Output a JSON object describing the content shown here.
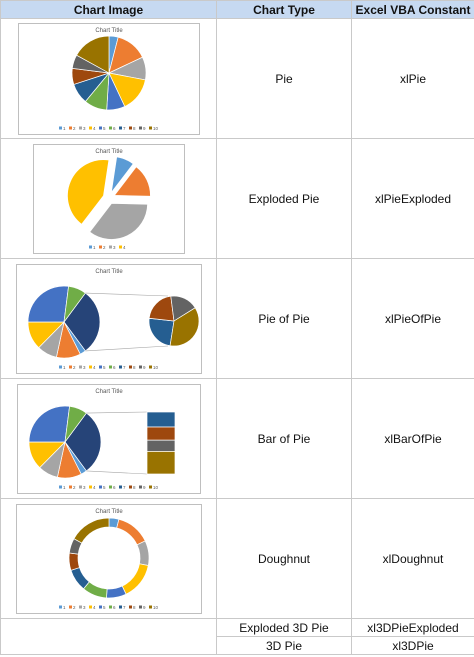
{
  "table": {
    "headers": [
      "Chart Image",
      "Chart Type",
      "Excel VBA Constant"
    ],
    "rows": [
      {
        "chart_type": "Pie",
        "constant": "xlPie",
        "image": {
          "title": "Chart Title",
          "legend": [
            "1",
            "2",
            "3",
            "4",
            "5",
            "6",
            "7",
            "8",
            "9",
            "10"
          ],
          "slices": [
            4,
            14,
            10,
            15,
            8,
            10,
            9,
            7,
            6,
            17
          ]
        }
      },
      {
        "chart_type": "Exploded Pie",
        "constant": "xlPieExploded",
        "image": {
          "title": "Chart Title",
          "legend": [
            "1",
            "2",
            "3",
            "4"
          ],
          "slices": [
            8,
            15,
            35,
            42
          ]
        }
      },
      {
        "chart_type": "Pie of Pie",
        "constant": "xlPieOfPie",
        "image": {
          "title": "Chart Title",
          "legend": [
            "1",
            "2",
            "3",
            "4",
            "5",
            "6",
            "7",
            "8",
            "9",
            "10"
          ],
          "slices": [
            3,
            12,
            10,
            14,
            30,
            9,
            8,
            7,
            6,
            12
          ]
        }
      },
      {
        "chart_type": "Bar of Pie",
        "constant": "xlBarOfPie",
        "image": {
          "title": "Chart Title",
          "legend": [
            "1",
            "2",
            "3",
            "4",
            "5",
            "6",
            "7",
            "8",
            "9",
            "10"
          ],
          "slices": [
            3,
            12,
            10,
            14,
            30,
            9,
            8,
            7,
            6,
            12
          ]
        }
      },
      {
        "chart_type": "Doughnut",
        "constant": "xlDoughnut",
        "image": {
          "title": "Chart Title",
          "legend": [
            "1",
            "2",
            "3",
            "4",
            "5",
            "6",
            "7",
            "8",
            "9",
            "10"
          ],
          "slices": [
            4,
            14,
            10,
            15,
            8,
            10,
            9,
            7,
            6,
            17
          ]
        }
      },
      {
        "chart_type": "Exploded 3D Pie",
        "constant": "xl3DPieExploded"
      },
      {
        "chart_type": "3D Pie",
        "constant": "xl3DPie"
      }
    ]
  }
}
